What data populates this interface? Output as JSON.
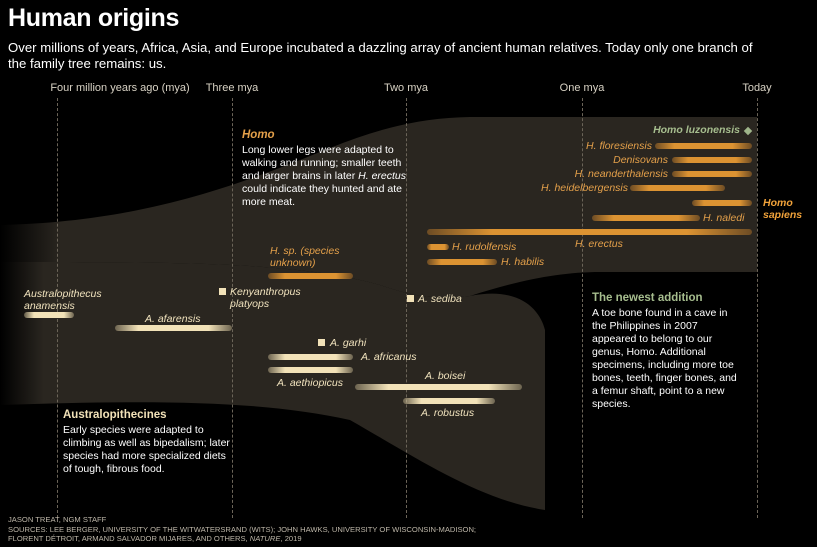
{
  "header": {
    "title": "Human origins",
    "subtitle": "Over millions of years, Africa, Asia, and Europe incubated a dazzling array of ancient human relatives. Today only one branch of the family tree remains: us."
  },
  "timeline": {
    "ticks": [
      "Four million years ago (mya)",
      "Three mya",
      "Two mya",
      "One mya",
      "Today"
    ]
  },
  "colors": {
    "background": "#000000",
    "australopithecine_bar": "#f2e2b8",
    "homo_bar": "#dc9332",
    "homo_sapiens_label": "#f0a23a",
    "homo_luzonensis": "#9fb58a",
    "band": "#2a2620"
  },
  "species": {
    "anamensis": "Australopithecus anamensis",
    "afarensis": "A. afarensis",
    "kenyanthropus": "Kenyanthropus platyops",
    "hsp": "H. sp. (species unknown)",
    "sediba": "A. sediba",
    "garhi": "A. garhi",
    "africanus": "A. africanus",
    "aethiopicus": "A. aethiopicus",
    "boisei": "A. boisei",
    "robustus": "A. robustus",
    "rudolfensis": "H. rudolfensis",
    "habilis": "H. habilis",
    "erectus": "H. erectus",
    "naledi": "H. naledi",
    "heidelbergensis": "H. heidelbergensis",
    "neanderthalensis": "H. neanderthalensis",
    "denisovans": "Denisovans",
    "floresiensis": "H. floresiensis",
    "luzonensis": "Homo luzonensis",
    "sapiens": "Homo sapiens"
  },
  "notes": {
    "homo": {
      "heading": "Homo",
      "body_1": "Long lower legs were adapted to walking and running; smaller teeth and larger brains in later",
      "body_em": "H. erectus",
      "body_2": "could indicate they hunted and ate more meat."
    },
    "australopithecines": {
      "heading": "Australopithecines",
      "body": "Early species were adapted to climbing as well as bipedalism; later species had more specialized diets of tough, fibrous food."
    },
    "newest": {
      "heading": "The newest addition",
      "body": "A toe bone found in a cave in the Philippines in 2007 appeared to belong to our genus, Homo. Additional specimens, including more toe bones, teeth, finger bones, and a femur shaft, point to a new species."
    }
  },
  "credits": {
    "line1": "JASON TREAT, NGM STAFF",
    "line2": "SOURCES: LEE BERGER, UNIVERSITY OF THE WITWATERSRAND (WITS); JOHN HAWKS, UNIVERSITY OF WISCONSIN-MADISON;",
    "line3_pre": "FLORENT DÉTROIT, ARMAND SALVADOR MIJARES, AND OTHERS,",
    "line3_em": "NATURE",
    "line3_post": ", 2019"
  }
}
